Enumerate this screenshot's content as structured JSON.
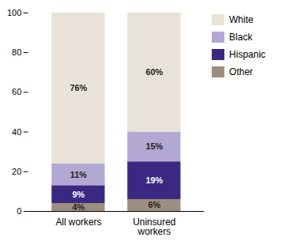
{
  "chart_data": {
    "type": "bar",
    "stacked": true,
    "data_labels": true,
    "legend": "right",
    "categories": [
      "All workers",
      "Uninsured\nworkers"
    ],
    "series": [
      {
        "name": "Other",
        "color": "#9e8e80",
        "values": [
          4,
          6
        ],
        "value_labels": [
          "4%",
          "6%"
        ]
      },
      {
        "name": "Hispanic",
        "color": "#3a2882",
        "values": [
          9,
          19
        ],
        "value_labels": [
          "9%",
          "19%"
        ]
      },
      {
        "name": "Black",
        "color": "#b3a8d4",
        "values": [
          11,
          15
        ],
        "value_labels": [
          "11%",
          "15%"
        ]
      },
      {
        "name": "White",
        "color": "#e8e2d8",
        "values": [
          76,
          60
        ],
        "value_labels": [
          "76%",
          "60%"
        ]
      }
    ],
    "ylim": [
      0,
      100
    ],
    "yticks": [
      0,
      20,
      40,
      60,
      80,
      100
    ]
  }
}
